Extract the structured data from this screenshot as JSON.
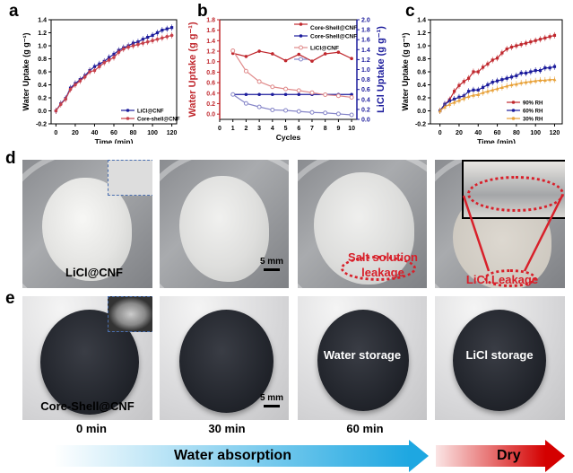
{
  "panel_labels": {
    "a": "a",
    "b": "b",
    "c": "c",
    "d": "d",
    "e": "e"
  },
  "chart_data": [
    {
      "id": "a",
      "type": "line",
      "xlabel": "Time (min)",
      "ylabel": "Water Uptake (g g⁻¹)",
      "xlim": [
        -5,
        125
      ],
      "ylim": [
        -0.2,
        1.4
      ],
      "xticks": [
        0,
        20,
        40,
        60,
        80,
        100,
        120
      ],
      "yticks": [
        -0.2,
        0.0,
        0.2,
        0.4,
        0.6,
        0.8,
        1.0,
        1.2,
        1.4
      ],
      "legend": "bottom-right",
      "x": [
        0,
        5,
        10,
        15,
        20,
        25,
        30,
        35,
        40,
        45,
        50,
        55,
        60,
        65,
        70,
        75,
        80,
        85,
        90,
        95,
        100,
        105,
        110,
        115,
        120
      ],
      "series": [
        {
          "name": "LiCl@CNF",
          "color": "#1c1c9c",
          "marker": "square",
          "values": [
            0,
            0.11,
            0.19,
            0.35,
            0.42,
            0.48,
            0.54,
            0.62,
            0.68,
            0.72,
            0.76,
            0.82,
            0.87,
            0.93,
            0.97,
            1.0,
            1.04,
            1.06,
            1.1,
            1.13,
            1.16,
            1.2,
            1.24,
            1.26,
            1.28
          ]
        },
        {
          "name": "Core-shell@CNF",
          "color": "#c7404a",
          "marker": "circle",
          "values": [
            0,
            0.1,
            0.18,
            0.33,
            0.4,
            0.46,
            0.52,
            0.6,
            0.62,
            0.68,
            0.74,
            0.78,
            0.82,
            0.9,
            0.95,
            0.98,
            1.0,
            1.02,
            1.04,
            1.06,
            1.08,
            1.1,
            1.12,
            1.14,
            1.16
          ]
        }
      ]
    },
    {
      "id": "b",
      "type": "line",
      "xlabel": "Cycles",
      "ylabel": "Water Uptake (g g⁻¹)",
      "ylabel_right": "LiCl Uptake (g g⁻¹)",
      "xlim": [
        0,
        10.4
      ],
      "ylim": [
        -0.1,
        1.8
      ],
      "ylim_right": [
        0,
        2.0
      ],
      "xticks": [
        0,
        1,
        2,
        3,
        4,
        5,
        6,
        7,
        8,
        9,
        10
      ],
      "yticks": [
        0.0,
        0.2,
        0.4,
        0.6,
        0.8,
        1.0,
        1.2,
        1.4,
        1.6,
        1.8
      ],
      "yticks_right": [
        0.0,
        0.2,
        0.4,
        0.6,
        0.8,
        1.0,
        1.2,
        1.4,
        1.6,
        1.8,
        2.0
      ],
      "legend": "top-right",
      "x": [
        1,
        2,
        3,
        4,
        5,
        6,
        7,
        8,
        9,
        10
      ],
      "series": [
        {
          "name": "Core-Shell@CNF",
          "color": "#c0282e",
          "marker": "circle",
          "axis": "left",
          "values": [
            1.16,
            1.1,
            1.2,
            1.15,
            1.02,
            1.14,
            1.01,
            1.15,
            1.18,
            1.06
          ]
        },
        {
          "name": "Core-Shell@CNF",
          "color": "#1c1c9c",
          "marker": "circle",
          "axis": "right",
          "values": [
            0.5,
            0.5,
            0.5,
            0.5,
            0.5,
            0.5,
            0.5,
            0.5,
            0.5,
            0.5
          ]
        },
        {
          "name": "LiCl@CNF",
          "color": "#e08a8a",
          "marker": "open",
          "axis": "left",
          "values": [
            1.21,
            0.82,
            0.62,
            0.52,
            0.48,
            0.45,
            0.41,
            0.37,
            0.35,
            0.32
          ]
        },
        {
          "name": "LiCl@CNF",
          "color": "#8585c8",
          "marker": "open",
          "axis": "right",
          "values": [
            0.5,
            0.32,
            0.25,
            0.19,
            0.18,
            0.16,
            0.14,
            0.13,
            0.11,
            0.09
          ]
        }
      ]
    },
    {
      "id": "c",
      "type": "line",
      "xlabel": "Time (min)",
      "ylabel": "Water Uptake (g g⁻¹)",
      "xlim": [
        -10,
        128
      ],
      "ylim": [
        -0.2,
        1.4
      ],
      "xticks": [
        0,
        20,
        40,
        60,
        80,
        100,
        120
      ],
      "yticks": [
        -0.2,
        0.0,
        0.2,
        0.4,
        0.6,
        0.8,
        1.0,
        1.2,
        1.4
      ],
      "legend": "bottom-right",
      "x": [
        0,
        5,
        10,
        15,
        20,
        25,
        30,
        35,
        40,
        45,
        50,
        55,
        60,
        65,
        70,
        75,
        80,
        85,
        90,
        95,
        100,
        105,
        110,
        115,
        120
      ],
      "series": [
        {
          "name": "90% RH",
          "color": "#c0282e",
          "marker": "square",
          "values": [
            0,
            0.1,
            0.17,
            0.3,
            0.39,
            0.45,
            0.5,
            0.6,
            0.6,
            0.67,
            0.72,
            0.78,
            0.81,
            0.89,
            0.95,
            0.98,
            1.0,
            1.02,
            1.04,
            1.06,
            1.08,
            1.1,
            1.12,
            1.14,
            1.16
          ]
        },
        {
          "name": "60% RH",
          "color": "#1c1c9c",
          "marker": "square",
          "values": [
            0,
            0.1,
            0.15,
            0.18,
            0.21,
            0.23,
            0.3,
            0.32,
            0.32,
            0.36,
            0.4,
            0.44,
            0.46,
            0.48,
            0.5,
            0.52,
            0.54,
            0.58,
            0.58,
            0.6,
            0.62,
            0.62,
            0.66,
            0.66,
            0.68
          ]
        },
        {
          "name": "30% RH",
          "color": "#e8a23a",
          "marker": "triangle",
          "values": [
            0,
            0.06,
            0.1,
            0.13,
            0.16,
            0.19,
            0.22,
            0.24,
            0.25,
            0.28,
            0.3,
            0.32,
            0.34,
            0.36,
            0.38,
            0.4,
            0.41,
            0.43,
            0.44,
            0.45,
            0.46,
            0.47,
            0.47,
            0.48,
            0.48
          ]
        }
      ]
    }
  ],
  "photos": {
    "d": {
      "sample_label": "LiCl@CNF",
      "scale_bar": "5 mm",
      "leak_text": "Salt solution leakage",
      "licl_leak_text": "LiCl Leakage"
    },
    "e": {
      "sample_label": "Core-Shell@CNF",
      "scale_bar": "5 mm",
      "water_storage": "Water storage",
      "licl_storage": "LiCl storage"
    }
  },
  "times": [
    "0 min",
    "30 min",
    "60 min"
  ],
  "arrows": {
    "absorption": "Water absorption",
    "dry": "Dry",
    "absorption_color": "#1ea7e1",
    "dry_color": "#d40000"
  }
}
